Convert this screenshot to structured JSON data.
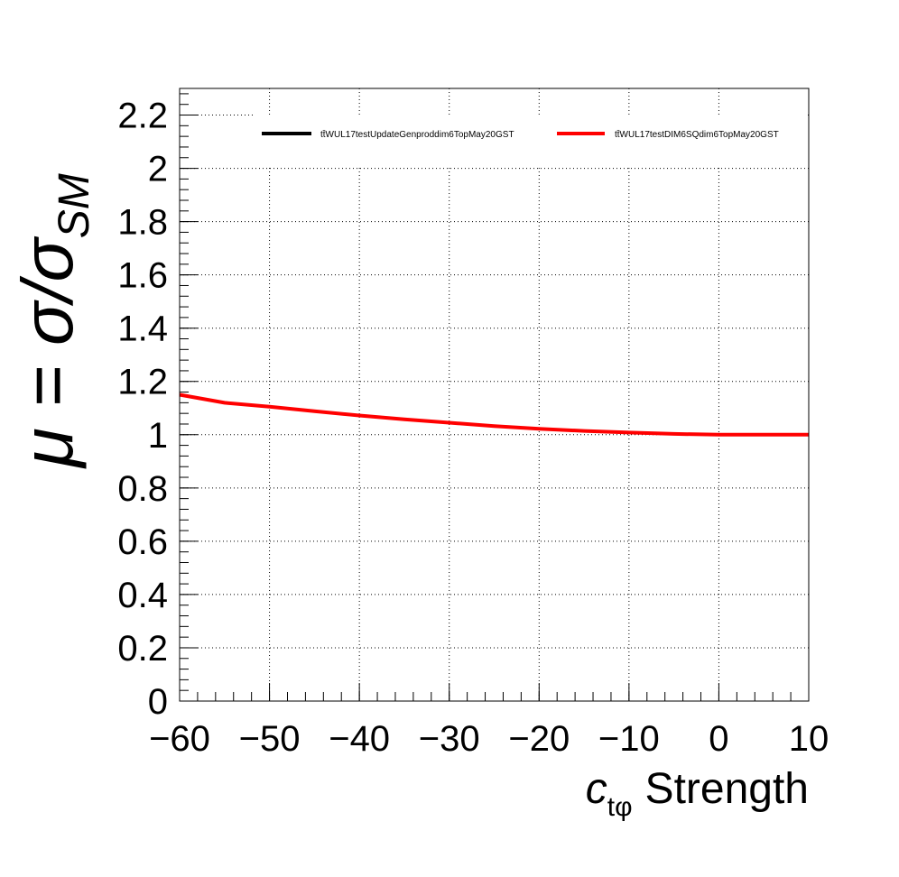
{
  "chart_data": {
    "type": "line",
    "title": "",
    "xlabel": {
      "symbol": "c",
      "subscript": "tφ",
      "text": "Strength"
    },
    "ylabel": {
      "lead": "μ = σ/σ",
      "subscript": "SM"
    },
    "xlim": [
      -60,
      10
    ],
    "ylim": [
      0,
      2.3
    ],
    "xticks": [
      -60,
      -50,
      -40,
      -30,
      -20,
      -10,
      0,
      10
    ],
    "xtick_labels": [
      "−60",
      "−50",
      "−40",
      "−30",
      "−20",
      "−10",
      "0",
      "10"
    ],
    "yticks": [
      0,
      0.2,
      0.4,
      0.6,
      0.8,
      1,
      1.2,
      1.4,
      1.6,
      1.8,
      2,
      2.2
    ],
    "ytick_labels": [
      "0",
      "0.2",
      "0.4",
      "0.6",
      "0.8",
      "1",
      "1.2",
      "1.4",
      "1.6",
      "1.8",
      "2",
      "2.2"
    ],
    "grid": true,
    "legend_position": "top",
    "series": [
      {
        "name": "tt̄WUL17testUpdateGenproddim6TopMay20GST",
        "color": "#000000",
        "x": [
          -60,
          -55,
          -50,
          -45,
          -40,
          -35,
          -30,
          -25,
          -20,
          -15,
          -10,
          -5,
          0,
          5,
          10
        ],
        "y": [
          1.15,
          1.12,
          1.105,
          1.088,
          1.072,
          1.058,
          1.045,
          1.032,
          1.022,
          1.014,
          1.008,
          1.003,
          1.0,
          1.0,
          1.0
        ]
      },
      {
        "name": "tt̄WUL17testDIM6SQdim6TopMay20GST",
        "color": "#ff0000",
        "x": [
          -60,
          -55,
          -50,
          -45,
          -40,
          -35,
          -30,
          -25,
          -20,
          -15,
          -10,
          -5,
          0,
          5,
          10
        ],
        "y": [
          1.15,
          1.12,
          1.105,
          1.088,
          1.072,
          1.058,
          1.045,
          1.032,
          1.022,
          1.014,
          1.008,
          1.003,
          1.0,
          1.0,
          1.0
        ]
      }
    ]
  }
}
